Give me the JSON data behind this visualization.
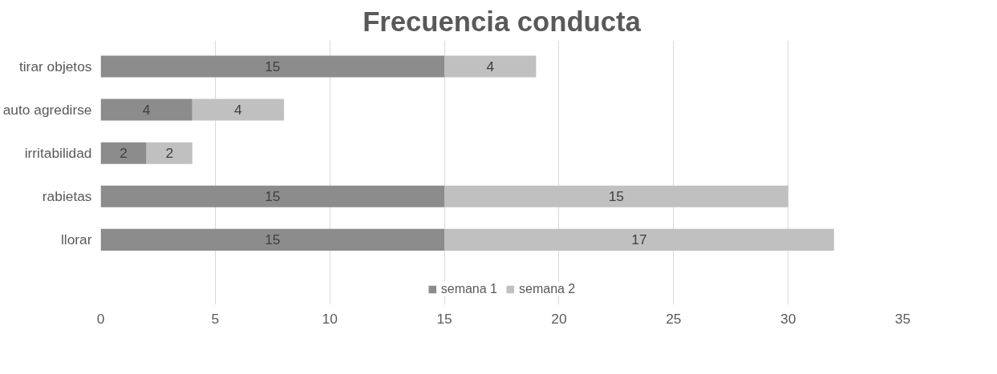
{
  "chart_data": {
    "type": "bar",
    "orientation": "horizontal",
    "stacked": true,
    "title": "Frecuencia conducta",
    "categories": [
      "tirar objetos",
      "auto agredirse",
      "irritabilidad",
      "rabietas",
      "llorar"
    ],
    "series": [
      {
        "name": "semana 1",
        "color": "#8c8c8c",
        "values": [
          15,
          4,
          2,
          15,
          15
        ]
      },
      {
        "name": "semana 2",
        "color": "#c0c0c0",
        "values": [
          4,
          4,
          2,
          15,
          17
        ]
      }
    ],
    "xlim": [
      0,
      35
    ],
    "xticks": [
      0,
      5,
      10,
      15,
      20,
      25,
      30,
      35
    ],
    "grid": "x",
    "legend": "bottom",
    "data_labels": true
  }
}
